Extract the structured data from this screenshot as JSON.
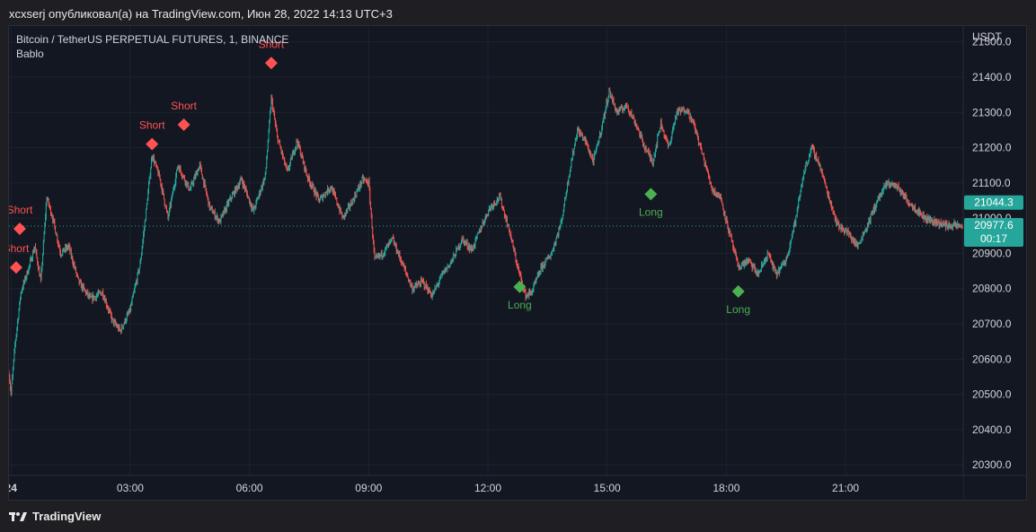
{
  "header": {
    "publish_text": "xcxserj опубликовал(а) на TradingView.com, Июн 28, 2022 14:13 UTC+3"
  },
  "legend": {
    "symbol": "Bitcoin / TetherUS PERPETUAL FUTURES, 1, BINANCE",
    "indicator": "Bablo"
  },
  "footer": {
    "brand": "TradingView"
  },
  "colors": {
    "up": "#26a69a",
    "down": "#ef5350",
    "short_marker": "#ff5252",
    "long_marker": "#4caf50",
    "price_label": "#26a69a",
    "background": "#131722",
    "grid": "#1e222d"
  },
  "chart_data": {
    "type": "candlestick",
    "currency_label": "USDT",
    "y_ticks": [
      21500.0,
      21400.0,
      21300.0,
      21200.0,
      21100.0,
      21000.0,
      20900.0,
      20800.0,
      20700.0,
      20600.0,
      20500.0,
      20400.0,
      20300.0
    ],
    "ylim": [
      20270,
      21545
    ],
    "x_ticks": [
      "24",
      "03:00",
      "06:00",
      "09:00",
      "12:00",
      "15:00",
      "18:00",
      "21:00"
    ],
    "x_tick_hours": [
      24,
      27,
      30,
      33,
      36,
      39,
      42,
      45
    ],
    "xlim_hours": [
      23.95,
      47.96
    ],
    "last_price": "21044.3",
    "current_price": "20977.6",
    "countdown": "00:17",
    "current_price_value": 20977.6,
    "last_price_value": 21044.3,
    "price_path": [
      [
        23.95,
        20560
      ],
      [
        24.0,
        20500
      ],
      [
        24.1,
        20640
      ],
      [
        24.25,
        20790
      ],
      [
        24.45,
        20860
      ],
      [
        24.6,
        20920
      ],
      [
        24.75,
        20820
      ],
      [
        24.9,
        21060
      ],
      [
        25.05,
        21000
      ],
      [
        25.25,
        20900
      ],
      [
        25.45,
        20920
      ],
      [
        25.7,
        20820
      ],
      [
        26.0,
        20770
      ],
      [
        26.3,
        20790
      ],
      [
        26.55,
        20710
      ],
      [
        26.75,
        20680
      ],
      [
        27.0,
        20740
      ],
      [
        27.25,
        20870
      ],
      [
        27.4,
        21020
      ],
      [
        27.55,
        21180
      ],
      [
        27.75,
        21110
      ],
      [
        27.95,
        21000
      ],
      [
        28.2,
        21150
      ],
      [
        28.5,
        21080
      ],
      [
        28.75,
        21150
      ],
      [
        29.0,
        21030
      ],
      [
        29.25,
        20990
      ],
      [
        29.5,
        21050
      ],
      [
        29.8,
        21110
      ],
      [
        30.1,
        21020
      ],
      [
        30.4,
        21120
      ],
      [
        30.55,
        21340
      ],
      [
        30.7,
        21230
      ],
      [
        30.95,
        21130
      ],
      [
        31.2,
        21220
      ],
      [
        31.45,
        21120
      ],
      [
        31.75,
        21050
      ],
      [
        32.05,
        21090
      ],
      [
        32.35,
        21000
      ],
      [
        32.6,
        21050
      ],
      [
        32.85,
        21110
      ],
      [
        33.0,
        21100
      ],
      [
        33.15,
        20880
      ],
      [
        33.35,
        20900
      ],
      [
        33.6,
        20940
      ],
      [
        33.85,
        20870
      ],
      [
        34.1,
        20800
      ],
      [
        34.35,
        20820
      ],
      [
        34.6,
        20780
      ],
      [
        34.85,
        20840
      ],
      [
        35.1,
        20880
      ],
      [
        35.35,
        20940
      ],
      [
        35.6,
        20910
      ],
      [
        35.85,
        20980
      ],
      [
        36.05,
        21030
      ],
      [
        36.3,
        21060
      ],
      [
        36.55,
        20960
      ],
      [
        36.75,
        20860
      ],
      [
        36.95,
        20780
      ],
      [
        37.1,
        20790
      ],
      [
        37.35,
        20860
      ],
      [
        37.6,
        20900
      ],
      [
        37.85,
        20990
      ],
      [
        38.05,
        21130
      ],
      [
        38.25,
        21250
      ],
      [
        38.45,
        21220
      ],
      [
        38.65,
        21160
      ],
      [
        38.85,
        21250
      ],
      [
        39.05,
        21360
      ],
      [
        39.25,
        21300
      ],
      [
        39.5,
        21320
      ],
      [
        39.75,
        21260
      ],
      [
        39.95,
        21200
      ],
      [
        40.15,
        21160
      ],
      [
        40.35,
        21270
      ],
      [
        40.55,
        21200
      ],
      [
        40.75,
        21300
      ],
      [
        41.0,
        21310
      ],
      [
        41.2,
        21260
      ],
      [
        41.45,
        21160
      ],
      [
        41.65,
        21080
      ],
      [
        41.85,
        21060
      ],
      [
        42.05,
        20970
      ],
      [
        42.3,
        20860
      ],
      [
        42.55,
        20880
      ],
      [
        42.8,
        20840
      ],
      [
        43.05,
        20900
      ],
      [
        43.25,
        20840
      ],
      [
        43.5,
        20880
      ],
      [
        43.75,
        21000
      ],
      [
        43.95,
        21130
      ],
      [
        44.15,
        21200
      ],
      [
        44.35,
        21150
      ],
      [
        44.55,
        21070
      ],
      [
        44.8,
        20980
      ],
      [
        45.05,
        20960
      ],
      [
        45.3,
        20920
      ],
      [
        45.55,
        20980
      ],
      [
        45.8,
        21050
      ],
      [
        46.05,
        21100
      ],
      [
        46.3,
        21090
      ],
      [
        46.55,
        21050
      ],
      [
        47.0,
        21000
      ],
      [
        47.5,
        20980
      ],
      [
        47.96,
        20977.6
      ]
    ],
    "signals": [
      {
        "label": "Short",
        "time_hours": 24.13,
        "price": 20860
      },
      {
        "label": "Short",
        "time_hours": 24.22,
        "price": 20970
      },
      {
        "label": "Short",
        "time_hours": 27.55,
        "price": 21210
      },
      {
        "label": "Short",
        "time_hours": 28.35,
        "price": 21265
      },
      {
        "label": "Short",
        "time_hours": 30.55,
        "price": 21440
      },
      {
        "label": "Long",
        "time_hours": 36.8,
        "price": 20805
      },
      {
        "label": "Long",
        "time_hours": 40.1,
        "price": 21068
      },
      {
        "label": "Long",
        "time_hours": 42.3,
        "price": 20792
      }
    ]
  }
}
